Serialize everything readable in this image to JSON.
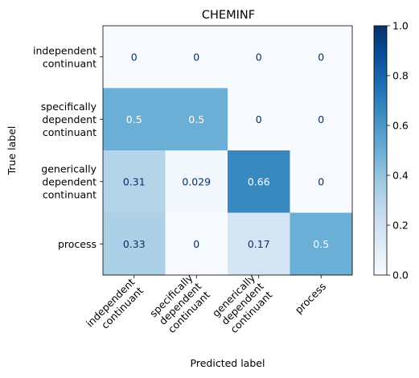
{
  "chart_data": {
    "type": "heatmap",
    "title": "CHEMINF",
    "xlabel": "Predicted label",
    "ylabel": "True label",
    "row_labels": [
      [
        "independent",
        "continuant"
      ],
      [
        "specifically",
        "dependent",
        "continuant"
      ],
      [
        "generically",
        "dependent",
        "continuant"
      ],
      [
        "process"
      ]
    ],
    "col_labels": [
      [
        "independent",
        "continuant"
      ],
      [
        "specifically",
        "dependent",
        "continuant"
      ],
      [
        "generically",
        "dependent",
        "continuant"
      ],
      [
        "process"
      ]
    ],
    "values": [
      [
        0,
        0,
        0,
        0
      ],
      [
        0.5,
        0.5,
        0,
        0
      ],
      [
        0.31,
        0.029,
        0.66,
        0
      ],
      [
        0.33,
        0,
        0.17,
        0.5
      ]
    ],
    "value_labels": [
      [
        "0",
        "0",
        "0",
        "0"
      ],
      [
        "0.5",
        "0.5",
        "0",
        "0"
      ],
      [
        "0.31",
        "0.029",
        "0.66",
        "0"
      ],
      [
        "0.33",
        "0",
        "0.17",
        "0.5"
      ]
    ],
    "colormap": "Blues",
    "vmin": 0,
    "vmax": 1,
    "colorbar_ticks": [
      "0.0",
      "0.2",
      "0.4",
      "0.6",
      "0.8",
      "1.0"
    ]
  }
}
